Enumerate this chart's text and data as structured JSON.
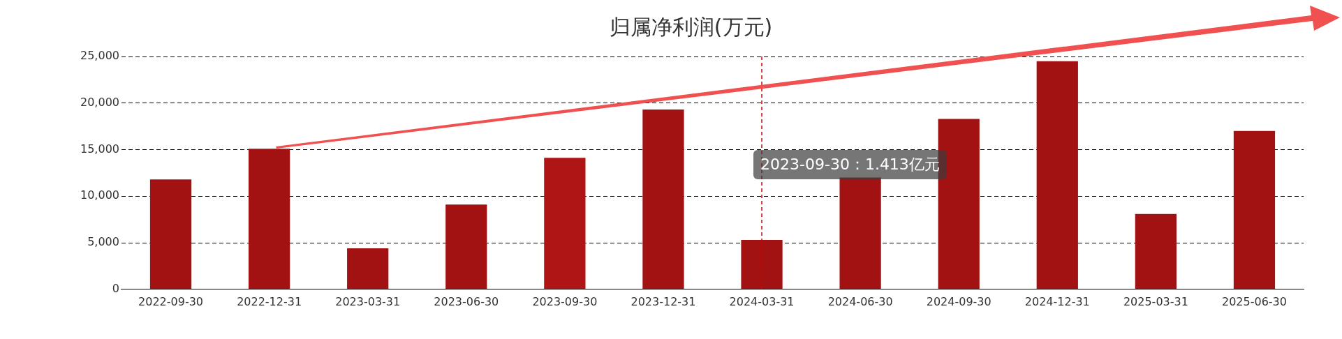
{
  "chart_data": {
    "type": "bar",
    "title": "归属净利润(万元)",
    "categories": [
      "2022-09-30",
      "2022-12-31",
      "2023-03-31",
      "2023-06-30",
      "2023-09-30",
      "2023-12-31",
      "2024-03-31",
      "2024-06-30",
      "2024-09-30",
      "2024-12-31",
      "2025-03-31",
      "2025-06-30"
    ],
    "values": [
      11800,
      15100,
      4400,
      9100,
      14130,
      19300,
      5300,
      12000,
      18300,
      24500,
      8100,
      17000
    ],
    "colors": [
      "#a31212",
      "#a31212",
      "#a31212",
      "#a31212",
      "#b01515",
      "#a31212",
      "#a31212",
      "#a31212",
      "#a31212",
      "#a31212",
      "#a31212",
      "#a31212"
    ],
    "ylim": [
      0,
      25000
    ],
    "yticks": [
      {
        "value": 0,
        "label": "0"
      },
      {
        "value": 5000,
        "label": "5,000"
      },
      {
        "value": 10000,
        "label": "10,000"
      },
      {
        "value": 15000,
        "label": "15,000"
      },
      {
        "value": 20000,
        "label": "20,000"
      },
      {
        "value": 25000,
        "label": "25,000"
      }
    ],
    "grid": "y",
    "legend": false,
    "ref_lines": [
      {
        "axis": "x",
        "value": "2024-03-31",
        "color": "#cc0000",
        "line_style": "dashed"
      }
    ],
    "annotations": [
      "2023-09-30：1.413亿元"
    ]
  }
}
